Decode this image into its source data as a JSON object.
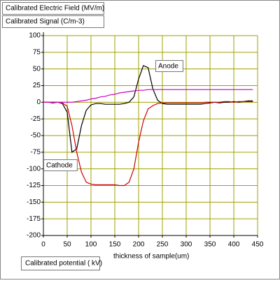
{
  "chart_data": {
    "type": "line",
    "xlabel": "thickness of sample(um)",
    "annotations": [
      "Anode",
      "Cathode"
    ],
    "x": [
      0,
      10,
      20,
      30,
      40,
      50,
      60,
      70,
      80,
      90,
      100,
      110,
      120,
      130,
      140,
      150,
      160,
      170,
      180,
      190,
      200,
      210,
      220,
      230,
      240,
      250,
      260,
      270,
      280,
      290,
      300,
      310,
      320,
      330,
      340,
      350,
      360,
      370,
      380,
      390,
      400,
      410,
      420,
      430,
      440
    ],
    "series": [
      {
        "name": "Calibrated Signal (C/m-3)",
        "color": "#000000",
        "values": [
          0,
          0,
          -1,
          0,
          -2,
          -15,
          -75,
          -70,
          -35,
          -12,
          -4,
          -2,
          -2,
          -3,
          -3,
          -3,
          -3,
          -2,
          0,
          8,
          35,
          55,
          52,
          20,
          3,
          -2,
          -3,
          -3,
          -3,
          -3,
          -3,
          -3,
          -3,
          -3,
          -2,
          -1,
          0,
          -1,
          0,
          0,
          1,
          0,
          1,
          2,
          2
        ]
      },
      {
        "name": "Calibrated Electric Field   (MV/m)",
        "color": "#cc0000",
        "values": [
          0,
          0,
          0,
          0,
          -1,
          -6,
          -35,
          -75,
          -105,
          -120,
          -123,
          -124,
          -124,
          -124,
          -124,
          -124,
          -125,
          -125,
          -120,
          -100,
          -60,
          -28,
          -10,
          -5,
          -2,
          -1,
          -1,
          -1,
          -1,
          -1,
          -1,
          -1,
          -1,
          -1,
          0,
          0,
          0,
          0,
          1,
          1,
          0,
          1,
          1,
          1,
          1
        ]
      },
      {
        "name": "Calibrated potential ( kV)",
        "color": "#cc00cc",
        "values": [
          0,
          0,
          0,
          0,
          0,
          0,
          0,
          1,
          2,
          3,
          5,
          6,
          8,
          9,
          11,
          12,
          14,
          15,
          16,
          17,
          18,
          18,
          19,
          19,
          19,
          19,
          19,
          19,
          19,
          19,
          19,
          19,
          19,
          19,
          19,
          19,
          19,
          19,
          19,
          19,
          19,
          19,
          19,
          19,
          19
        ]
      }
    ],
    "xlim": [
      0,
      450
    ],
    "xticks": [
      0,
      50,
      100,
      150,
      200,
      250,
      300,
      350,
      400,
      450
    ],
    "ylim": [
      -200,
      100
    ],
    "yticks": [
      100,
      75,
      50,
      25,
      0,
      -25,
      -50,
      -75,
      -100,
      -125,
      -150,
      -175,
      -200
    ],
    "grid": true,
    "grid_color": "#a0a000"
  }
}
